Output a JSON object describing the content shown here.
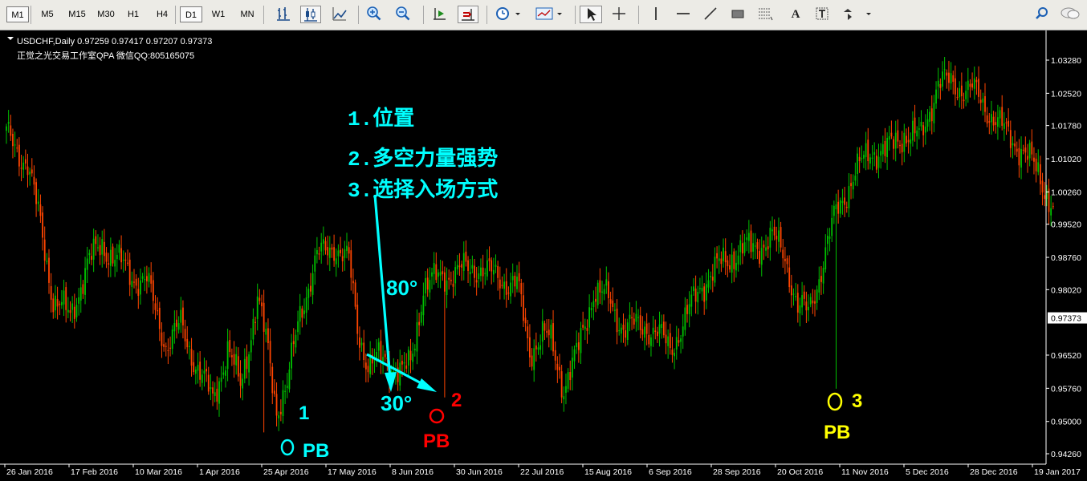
{
  "toolbar": {
    "timeframes": [
      "M1",
      "M5",
      "M15",
      "M30",
      "H1",
      "H4",
      "D1",
      "W1",
      "MN"
    ],
    "selected_timeframes": [
      "M1",
      "D1"
    ],
    "text_tool_label": "A"
  },
  "chart_header": {
    "symbol_line": "USDCHF,Daily  0.97259 0.97417 0.97207 0.97373",
    "subtitle": "正觉之光交易工作室QPA 微信QQ:805165075"
  },
  "annotations": {
    "title_1": "1.位置",
    "title_2": "2.多空力量强势",
    "title_3": "3.选择入场方式",
    "angle_80": "80°",
    "angle_30": "30°",
    "marker_1_num": "1",
    "marker_1_label": "PB",
    "marker_2_num": "2",
    "marker_2_label": "PB",
    "marker_3_num": "3",
    "marker_3_label": "PB"
  },
  "colors": {
    "background": "#000000",
    "bull": "#00c000",
    "bear": "#ff4500",
    "axis_text": "#ffffff",
    "cyan": "#00ffff",
    "red": "#ff0000",
    "yellow": "#ffff00",
    "price_box_bg": "#ffffff"
  },
  "chart_data": {
    "type": "candlestick",
    "y_ticks": [
      "1.03280",
      "1.02520",
      "1.01780",
      "1.01020",
      "1.00260",
      "0.99520",
      "0.98760",
      "0.98020",
      "0.97373",
      "0.96520",
      "0.95760",
      "0.95000",
      "0.94260"
    ],
    "current_price": "0.97373",
    "ylim": [
      0.9426,
      1.0328
    ],
    "x_ticks": [
      "26 Jan 2016",
      "17 Feb 2016",
      "10 Mar 2016",
      "1 Apr 2016",
      "25 Apr 2016",
      "17 May 2016",
      "8 Jun 2016",
      "30 Jun 2016",
      "22 Jul 2016",
      "15 Aug 2016",
      "6 Sep 2016",
      "28 Sep 2016",
      "20 Oct 2016",
      "11 Nov 2016",
      "5 Dec 2016",
      "28 Dec 2016",
      "19 Jan 2017"
    ],
    "close_path": [
      [
        0,
        1.0155
      ],
      [
        10,
        1.009
      ],
      [
        16,
        0.995
      ],
      [
        22,
        0.978
      ],
      [
        30,
        0.974
      ],
      [
        38,
        0.986
      ],
      [
        45,
        0.9905
      ],
      [
        52,
        0.987
      ],
      [
        60,
        0.983
      ],
      [
        66,
        0.982
      ],
      [
        75,
        0.9675
      ],
      [
        82,
        0.972
      ],
      [
        90,
        0.962
      ],
      [
        97,
        0.955
      ],
      [
        104,
        0.9665
      ],
      [
        110,
        0.958
      ],
      [
        118,
        0.978
      ],
      [
        123,
        0.966
      ],
      [
        127,
        0.953
      ],
      [
        132,
        0.958
      ],
      [
        138,
        0.975
      ],
      [
        146,
        0.9875
      ],
      [
        154,
        0.9905
      ],
      [
        161,
        0.9865
      ],
      [
        165,
        0.9715
      ],
      [
        170,
        0.963
      ],
      [
        178,
        0.9645
      ],
      [
        186,
        0.961
      ],
      [
        190,
        0.963
      ],
      [
        196,
        0.981
      ],
      [
        206,
        0.9835
      ],
      [
        214,
        0.9845
      ],
      [
        222,
        0.9855
      ],
      [
        230,
        0.983
      ],
      [
        240,
        0.9815
      ],
      [
        246,
        0.966
      ],
      [
        252,
        0.97
      ],
      [
        256,
        0.968
      ],
      [
        262,
        0.958
      ],
      [
        268,
        0.965
      ],
      [
        276,
        0.98
      ],
      [
        283,
        0.978
      ],
      [
        290,
        0.9715
      ],
      [
        300,
        0.972
      ],
      [
        306,
        0.97
      ],
      [
        312,
        0.967
      ],
      [
        318,
        0.972
      ],
      [
        326,
        0.981
      ],
      [
        336,
        0.986
      ],
      [
        344,
        0.989
      ],
      [
        352,
        0.99
      ],
      [
        360,
        0.992
      ],
      [
        366,
        0.988
      ],
      [
        372,
        0.976
      ],
      [
        377,
        0.975
      ],
      [
        383,
        0.985
      ],
      [
        390,
        0.998
      ],
      [
        398,
        1.006
      ],
      [
        406,
        1.012
      ],
      [
        414,
        1.012
      ],
      [
        422,
        1.016
      ],
      [
        430,
        1.015
      ],
      [
        438,
        1.028
      ],
      [
        446,
        1.027
      ],
      [
        454,
        1.026
      ],
      [
        462,
        1.021
      ],
      [
        470,
        1.016
      ],
      [
        478,
        1.012
      ],
      [
        486,
        1.006
      ],
      [
        492,
        0.999
      ]
    ],
    "annotated_candles": [
      {
        "label": "1",
        "low": 0.9475
      },
      {
        "label": "2",
        "low": 0.9555
      },
      {
        "label": "3",
        "low": 0.9575
      }
    ]
  }
}
